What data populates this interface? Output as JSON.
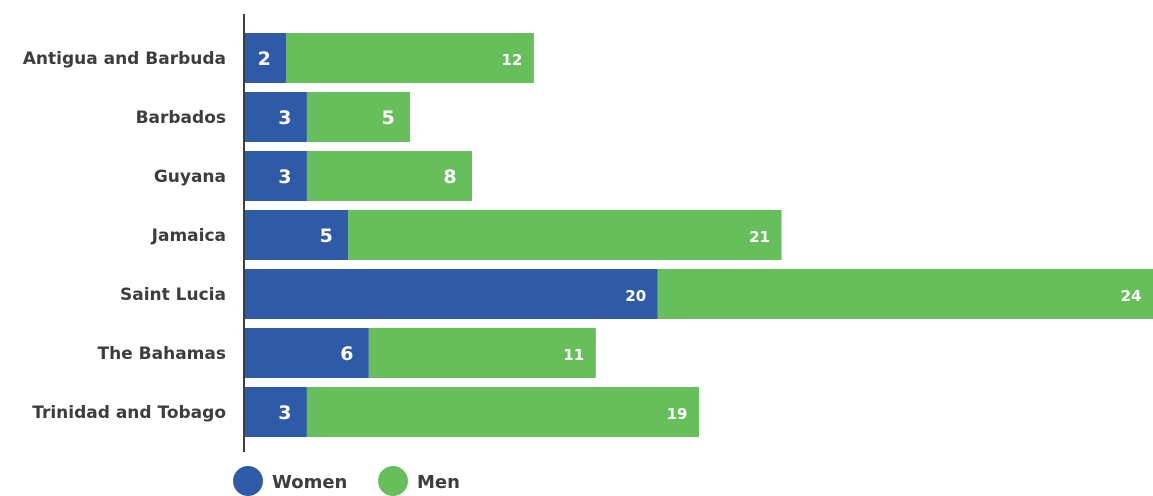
{
  "chart_data": {
    "type": "bar",
    "orientation": "horizontal",
    "stacked": true,
    "categories": [
      "Antigua and Barbuda",
      "Barbados",
      "Guyana",
      "Jamaica",
      "Saint Lucia",
      "The Bahamas",
      "Trinidad and Tobago"
    ],
    "series": [
      {
        "name": "Women",
        "color": "#2f5aa8",
        "values": [
          2,
          3,
          3,
          5,
          20,
          6,
          3
        ]
      },
      {
        "name": "Men",
        "color": "#66bf5a",
        "values": [
          12,
          5,
          8,
          21,
          24,
          11,
          19
        ]
      }
    ],
    "xlim": [
      0,
      44
    ],
    "grid": false,
    "legend_position": "bottom-left",
    "title": "",
    "xlabel": "",
    "ylabel": ""
  },
  "colors": {
    "axis": "#3d3d3d",
    "label_text": "#3d3d3d",
    "value_text": "#ffffff"
  }
}
